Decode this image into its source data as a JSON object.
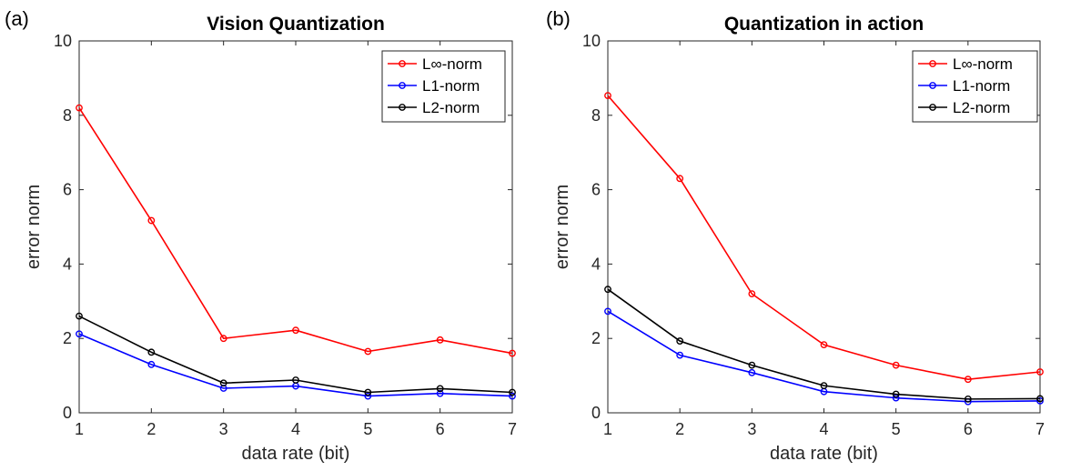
{
  "chart_data": [
    {
      "type": "line",
      "panel_tag": "(a)",
      "title": "Vision Quantization",
      "xlabel": "data rate (bit)",
      "ylabel": "error norm",
      "xlim": [
        1,
        7
      ],
      "ylim": [
        0,
        10
      ],
      "x_ticks": [
        1,
        2,
        3,
        4,
        5,
        6,
        7
      ],
      "y_ticks": [
        0,
        2,
        4,
        6,
        8,
        10
      ],
      "grid": false,
      "legend_position": "top-right",
      "x": [
        1,
        2,
        3,
        4,
        5,
        6,
        7
      ],
      "series": [
        {
          "name": "L∞-norm",
          "color": "#ff0000",
          "values": [
            8.2,
            5.17,
            2.0,
            2.22,
            1.65,
            1.96,
            1.6
          ]
        },
        {
          "name": "L1-norm",
          "color": "#0000ff",
          "values": [
            2.12,
            1.3,
            0.66,
            0.72,
            0.45,
            0.52,
            0.45
          ]
        },
        {
          "name": "L2-norm",
          "color": "#000000",
          "values": [
            2.6,
            1.63,
            0.8,
            0.88,
            0.55,
            0.65,
            0.55
          ]
        }
      ]
    },
    {
      "type": "line",
      "panel_tag": "(b)",
      "title": "Quantization in action",
      "xlabel": "data rate (bit)",
      "ylabel": "error norm",
      "xlim": [
        1,
        7
      ],
      "ylim": [
        0,
        10
      ],
      "x_ticks": [
        1,
        2,
        3,
        4,
        5,
        6,
        7
      ],
      "y_ticks": [
        0,
        2,
        4,
        6,
        8,
        10
      ],
      "grid": false,
      "legend_position": "top-right",
      "x": [
        1,
        2,
        3,
        4,
        5,
        6,
        7
      ],
      "series": [
        {
          "name": "L∞-norm",
          "color": "#ff0000",
          "values": [
            8.53,
            6.3,
            3.2,
            1.83,
            1.28,
            0.9,
            1.1
          ]
        },
        {
          "name": "L1-norm",
          "color": "#0000ff",
          "values": [
            2.73,
            1.55,
            1.08,
            0.57,
            0.4,
            0.3,
            0.32
          ]
        },
        {
          "name": "L2-norm",
          "color": "#000000",
          "values": [
            3.32,
            1.93,
            1.28,
            0.73,
            0.5,
            0.37,
            0.38
          ]
        }
      ]
    }
  ]
}
